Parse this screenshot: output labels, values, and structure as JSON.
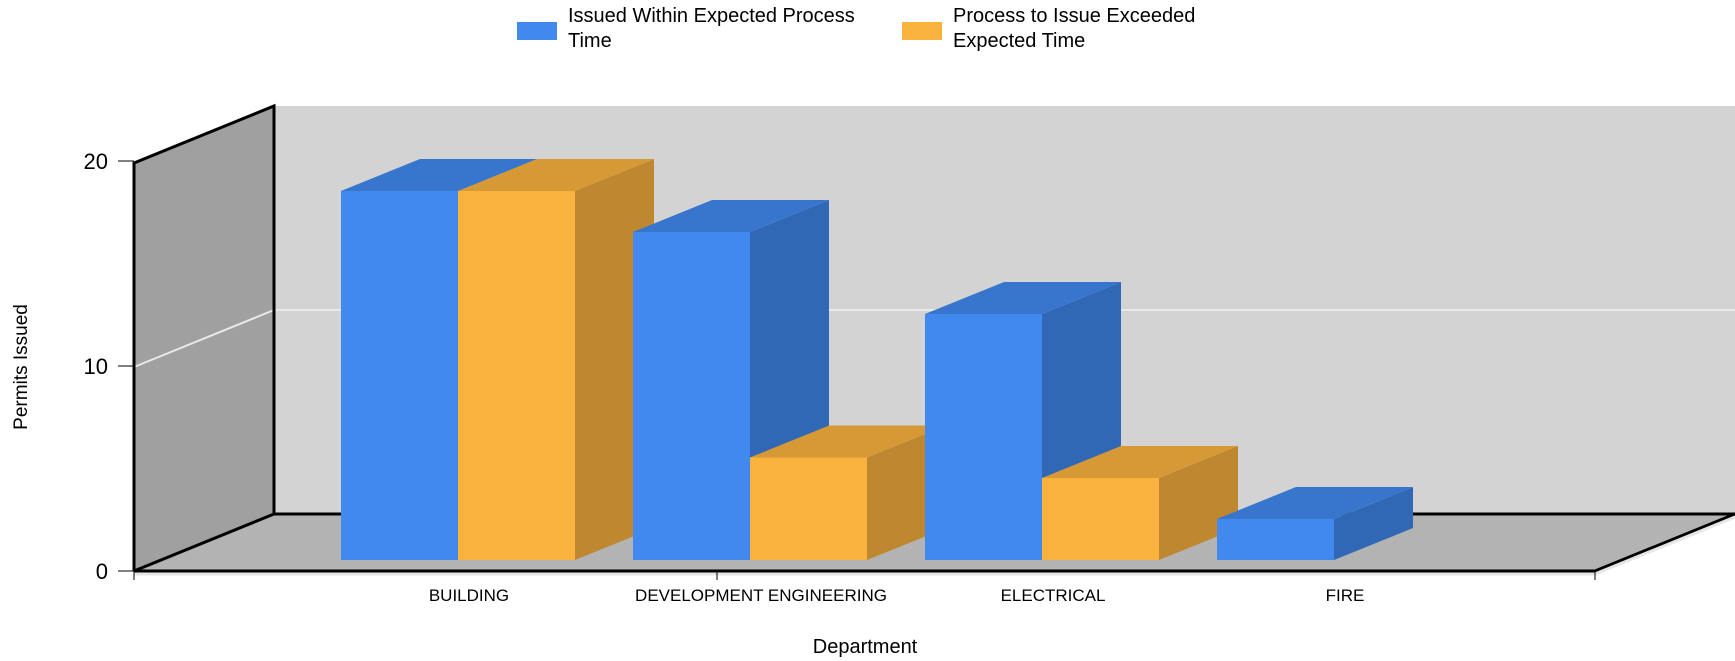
{
  "chart_data": {
    "type": "bar",
    "title": "",
    "xlabel": "Department",
    "ylabel": "Permits Issued",
    "categories": [
      "BUILDING",
      "DEVELOPMENT ENGINEERING",
      "ELECTRICAL",
      "FIRE"
    ],
    "series": [
      {
        "name": "Issued Within Expected Process Time",
        "color": "#4189ef",
        "values": [
          18,
          16,
          12,
          2
        ]
      },
      {
        "name": "Process to Issue Exceeded Expected Time",
        "color": "#fab23f",
        "values": [
          18,
          5,
          4,
          0
        ]
      }
    ],
    "yticks": [
      "0",
      "10",
      "20"
    ],
    "ylim": [
      0,
      20
    ],
    "legend_position": "top",
    "grid": true,
    "style": "3d"
  }
}
